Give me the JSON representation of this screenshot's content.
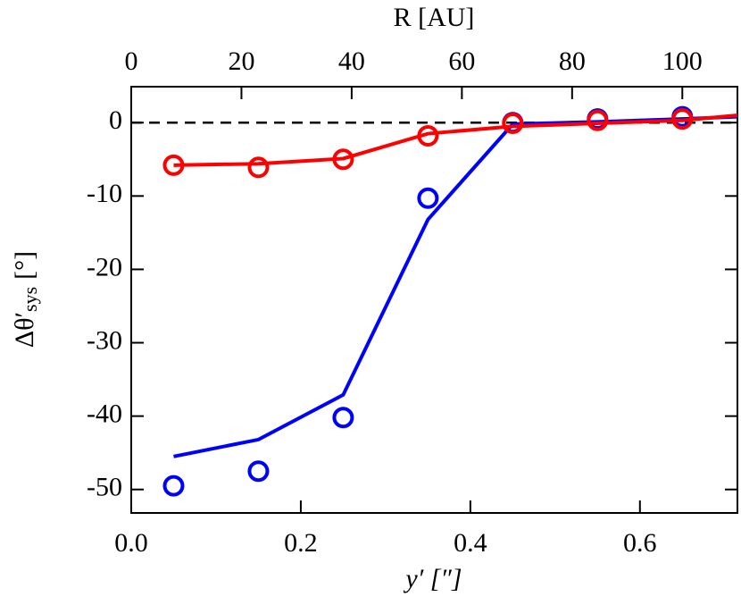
{
  "chart_data": {
    "type": "line",
    "xlabel": "y′ [″]",
    "x2label": "R [AU]",
    "ylabel": "Δθ′",
    "ylabel_sub": "sys",
    "ylabel_unit": "[°]",
    "xlim": [
      0,
      0.715
    ],
    "xticks": [
      {
        "value": 0,
        "label": "0.0"
      },
      0.2,
      0.4,
      0.6
    ],
    "x2lim": [
      0,
      110
    ],
    "x2ticks": [
      0,
      20,
      40,
      60,
      80,
      100
    ],
    "ylim": [
      -53.2,
      4.9
    ],
    "yticks": [
      -50,
      -40,
      -30,
      -20,
      -10,
      0
    ],
    "hline": 0,
    "series": [
      {
        "style": "circle",
        "color": "#0000ff",
        "x": [
          0.05,
          0.15,
          0.25,
          0.35,
          0.45,
          0.55,
          0.65
        ],
        "values": [
          -49.5,
          -47.5,
          -40.2,
          -10.3,
          0,
          0.5,
          0.8
        ]
      },
      {
        "style": "line",
        "color": "#0000ff",
        "x": [
          0.05,
          0.15,
          0.25,
          0.35,
          0.45,
          0.55,
          0.65,
          0.715
        ],
        "values": [
          -45.5,
          -43.2,
          -37.1,
          -13.2,
          -0.2,
          0.1,
          0.5,
          0.8
        ]
      },
      {
        "style": "line",
        "color": "#ff0000",
        "x": [
          0.05,
          0.15,
          0.25,
          0.35,
          0.45,
          0.55,
          0.65,
          0.715
        ],
        "values": [
          -5.8,
          -5.6,
          -4.9,
          -1.5,
          -0.5,
          -0.1,
          0.3,
          1.0
        ]
      },
      {
        "style": "circle",
        "color": "#ff0000",
        "x": [
          0.05,
          0.15,
          0.25,
          0.35,
          0.45,
          0.55,
          0.65
        ],
        "values": [
          -5.8,
          -6.1,
          -5.0,
          -1.8,
          -0.1,
          0.3,
          0.5
        ]
      }
    ]
  }
}
